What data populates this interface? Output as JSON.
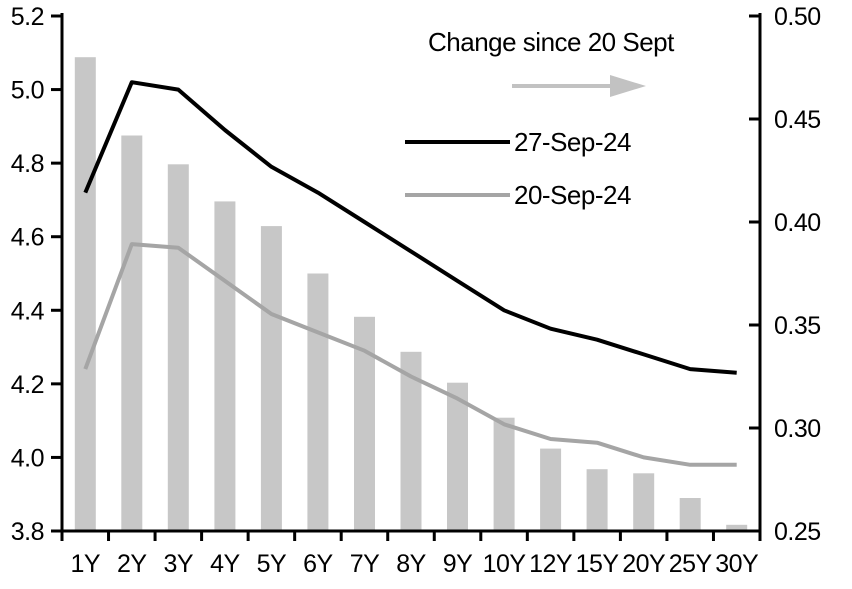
{
  "chart_data": {
    "type": "combo-bar-line",
    "categories": [
      "1Y",
      "2Y",
      "3Y",
      "4Y",
      "5Y",
      "6Y",
      "7Y",
      "8Y",
      "9Y",
      "10Y",
      "12Y",
      "15Y",
      "20Y",
      "25Y",
      "30Y"
    ],
    "bar_series": {
      "name": "Change since 20 Sept",
      "axis": "right",
      "color": "#c7c7c7",
      "values": [
        0.48,
        0.442,
        0.428,
        0.41,
        0.398,
        0.375,
        0.354,
        0.337,
        0.322,
        0.305,
        0.29,
        0.28,
        0.278,
        0.266,
        0.253
      ]
    },
    "line_series": [
      {
        "name": "27-Sep-24",
        "axis": "left",
        "color": "#000000",
        "values": [
          4.72,
          5.02,
          5.0,
          4.89,
          4.79,
          4.72,
          4.64,
          4.56,
          4.48,
          4.4,
          4.35,
          4.32,
          4.28,
          4.24,
          4.23
        ]
      },
      {
        "name": "20-Sep-24",
        "axis": "left",
        "color": "#a5a5a5",
        "values": [
          4.24,
          4.58,
          4.57,
          4.48,
          4.39,
          4.34,
          4.29,
          4.22,
          4.16,
          4.09,
          4.05,
          4.04,
          4.0,
          3.98,
          3.98
        ]
      }
    ],
    "left_axis": {
      "range": [
        3.8,
        5.2
      ],
      "ticks": [
        "5.2",
        "5.0",
        "4.8",
        "4.6",
        "4.4",
        "4.2",
        "4.0",
        "3.8"
      ],
      "tick_values": [
        5.2,
        5.0,
        4.8,
        4.6,
        4.4,
        4.2,
        4.0,
        3.8
      ]
    },
    "right_axis": {
      "range": [
        0.25,
        0.5
      ],
      "ticks": [
        "0.50",
        "0.45",
        "0.40",
        "0.35",
        "0.30",
        "0.25"
      ],
      "tick_values": [
        0.5,
        0.45,
        0.4,
        0.35,
        0.3,
        0.25
      ]
    },
    "legend": {
      "title": "Change since 20 Sept",
      "arrow_icon": "right-arrow",
      "arrow_color": "#c2c2c2",
      "items": [
        {
          "label": "27-Sep-24",
          "color": "#000000"
        },
        {
          "label": "20-Sep-24",
          "color": "#a5a5a5"
        }
      ]
    },
    "grid": "off",
    "legend_position": "top-right-inside"
  }
}
